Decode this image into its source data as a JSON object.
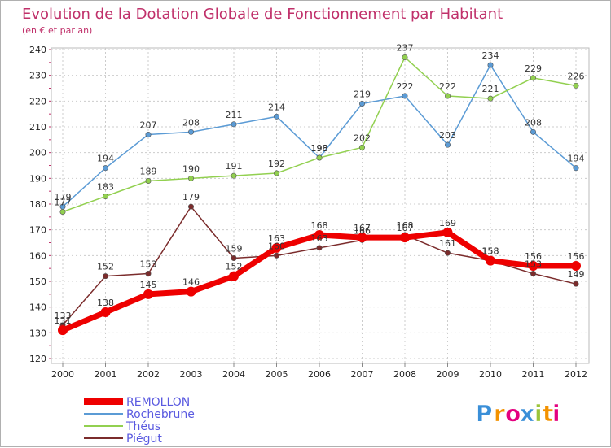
{
  "chart_data": {
    "type": "line",
    "title": "Evolution de la Dotation Globale de Fonctionnement par Habitant",
    "subtitle": "(en € et par an)",
    "x": [
      "2000",
      "2001",
      "2002",
      "2003",
      "2004",
      "2005",
      "2006",
      "2007",
      "2008",
      "2009",
      "2010",
      "2011",
      "2012"
    ],
    "ylim": [
      120,
      240
    ],
    "yticks": [
      120,
      130,
      140,
      150,
      160,
      170,
      180,
      190,
      200,
      210,
      220,
      230,
      240
    ],
    "grid": "horizontal-dashed",
    "legend_position": "bottom-left",
    "series": [
      {
        "name": "REMOLLON",
        "color": "#ee0000",
        "values": [
          131,
          138,
          145,
          146,
          152,
          163,
          168,
          167,
          167,
          169,
          158,
          156,
          156
        ]
      },
      {
        "name": "Rochebrune",
        "color": "#5b9bd5",
        "values": [
          179,
          194,
          207,
          208,
          211,
          214,
          198,
          219,
          222,
          203,
          234,
          208,
          194
        ]
      },
      {
        "name": "Théus",
        "color": "#92d050",
        "values": [
          177,
          183,
          189,
          190,
          191,
          192,
          198,
          202,
          237,
          222,
          221,
          229,
          226
        ]
      },
      {
        "name": "Piégut",
        "color": "#7b2c2c",
        "values": [
          133,
          152,
          153,
          179,
          159,
          160,
          163,
          166,
          168,
          161,
          158,
          153,
          149
        ]
      }
    ]
  },
  "brand": {
    "letters": [
      "P",
      "r",
      "o",
      "x",
      "i",
      "t",
      "i"
    ],
    "colors": [
      "#3a8fd8",
      "#f39200",
      "#e4007f",
      "#3a8fd8",
      "#9bc43a",
      "#f39200",
      "#e4007f"
    ]
  }
}
